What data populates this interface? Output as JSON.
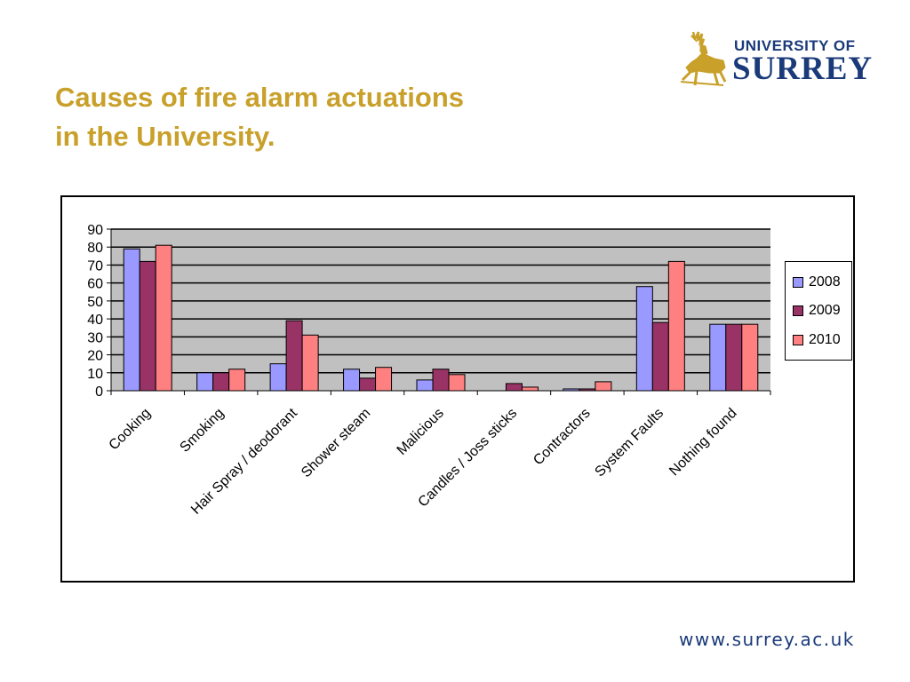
{
  "title": {
    "line1": "Causes of fire alarm actuations",
    "line2": "in the University."
  },
  "logo": {
    "line1": "UNIVERSITY OF",
    "line2": "SURREY",
    "emblem": "stag-icon"
  },
  "footer": {
    "url": "www.surrey.ac.uk"
  },
  "colors": {
    "title": "#c8a02a",
    "brand": "#1a3a7a",
    "plot_background": "#c0c0c0",
    "series": [
      "#9999ff",
      "#993366",
      "#ff8080"
    ]
  },
  "chart_data": {
    "type": "bar",
    "title": "",
    "xlabel": "",
    "ylabel": "",
    "ylim": [
      0,
      90
    ],
    "yticks": [
      "0",
      "10",
      "20",
      "30",
      "40",
      "50",
      "60",
      "70",
      "80",
      "90"
    ],
    "grid": true,
    "legend_position": "right",
    "categories": [
      "Cooking",
      "Smoking",
      "Hair Spray / deodorant",
      "Shower steam",
      "Malicious",
      "Candles / Joss sticks",
      "Contractors",
      "System Faults",
      "Nothing found"
    ],
    "series": [
      {
        "name": "2008",
        "values": [
          79,
          10,
          15,
          12,
          6,
          0,
          1,
          58,
          37
        ]
      },
      {
        "name": "2009",
        "values": [
          72,
          10,
          39,
          7,
          12,
          4,
          1,
          38,
          37
        ]
      },
      {
        "name": "2010",
        "values": [
          81,
          12,
          31,
          13,
          9,
          2,
          5,
          72,
          37
        ]
      }
    ]
  }
}
